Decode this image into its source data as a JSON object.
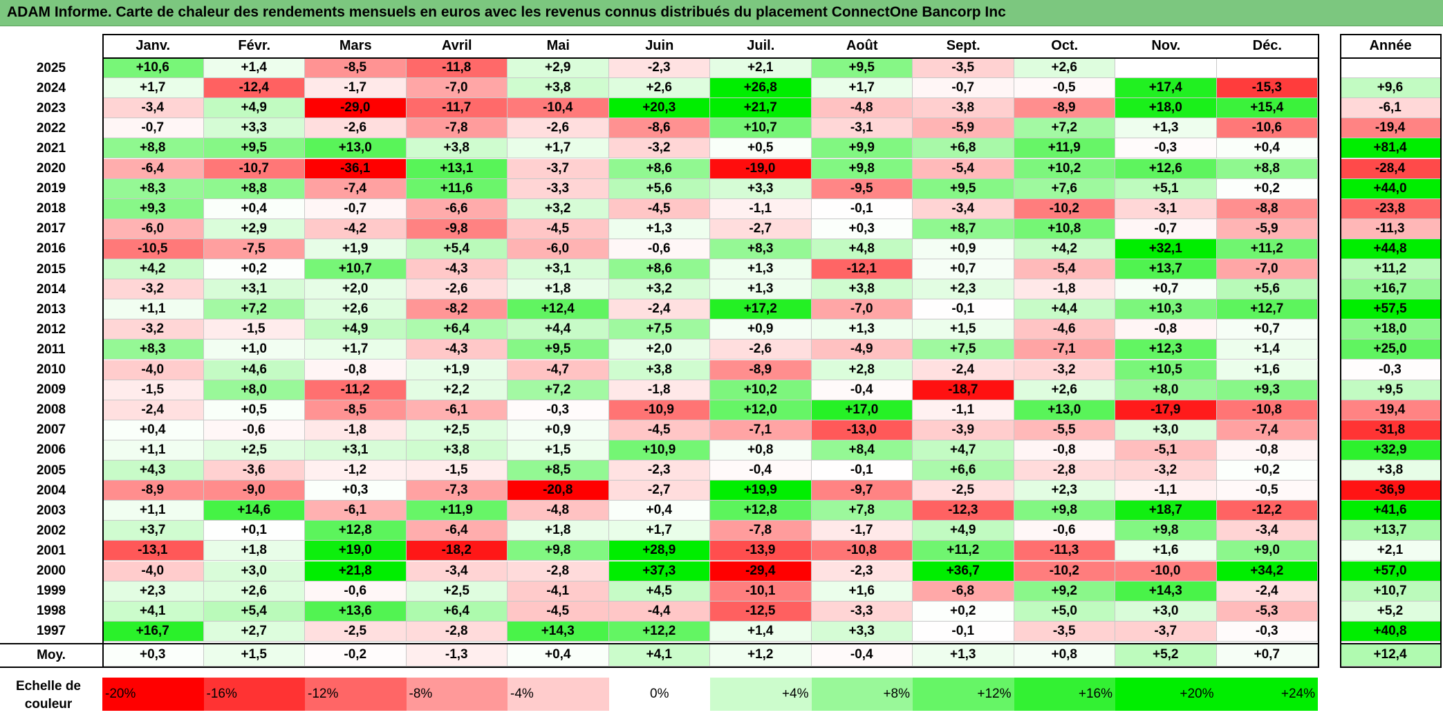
{
  "title": "ADAM Informe. Carte de chaleur des rendements mensuels en euros avec les revenus connus distribués du placement ConnectOne Bancorp Inc",
  "chart_data": {
    "type": "heatmap",
    "title": "ADAM Informe. Carte de chaleur des rendements mensuels en euros avec les revenus connus distribués du placement ConnectOne Bancorp Inc",
    "months": [
      "Janv.",
      "Févr.",
      "Mars",
      "Avril",
      "Mai",
      "Juin",
      "Juil.",
      "Août",
      "Sept.",
      "Oct.",
      "Nov.",
      "Déc."
    ],
    "annual_header": "Année",
    "rows": [
      {
        "year": "2025",
        "values": [
          "+10,6",
          "+1,4",
          "-8,5",
          "-11,8",
          "+2,9",
          "-2,3",
          "+2,1",
          "+9,5",
          "-3,5",
          "+2,6",
          "",
          ""
        ],
        "annual": ""
      },
      {
        "year": "2024",
        "values": [
          "+1,7",
          "-12,4",
          "-1,7",
          "-7,0",
          "+3,8",
          "+2,6",
          "+26,8",
          "+1,7",
          "-0,7",
          "-0,5",
          "+17,4",
          "-15,3"
        ],
        "annual": "+9,6"
      },
      {
        "year": "2023",
        "values": [
          "-3,4",
          "+4,9",
          "-29,0",
          "-11,7",
          "-10,4",
          "+20,3",
          "+21,7",
          "-4,8",
          "-3,8",
          "-8,9",
          "+18,0",
          "+15,4"
        ],
        "annual": "-6,1"
      },
      {
        "year": "2022",
        "values": [
          "-0,7",
          "+3,3",
          "-2,6",
          "-7,8",
          "-2,6",
          "-8,6",
          "+10,7",
          "-3,1",
          "-5,9",
          "+7,2",
          "+1,3",
          "-10,6"
        ],
        "annual": "-19,4"
      },
      {
        "year": "2021",
        "values": [
          "+8,8",
          "+9,5",
          "+13,0",
          "+3,8",
          "+1,7",
          "-3,2",
          "+0,5",
          "+9,9",
          "+6,8",
          "+11,9",
          "-0,3",
          "+0,4"
        ],
        "annual": "+81,4"
      },
      {
        "year": "2020",
        "values": [
          "-6,4",
          "-10,7",
          "-36,1",
          "+13,1",
          "-3,7",
          "+8,6",
          "-19,0",
          "+9,8",
          "-5,4",
          "+10,2",
          "+12,6",
          "+8,8"
        ],
        "annual": "-28,4"
      },
      {
        "year": "2019",
        "values": [
          "+8,3",
          "+8,8",
          "-7,4",
          "+11,6",
          "-3,3",
          "+5,6",
          "+3,3",
          "-9,5",
          "+9,5",
          "+7,6",
          "+5,1",
          "+0,2"
        ],
        "annual": "+44,0"
      },
      {
        "year": "2018",
        "values": [
          "+9,3",
          "+0,4",
          "-0,7",
          "-6,6",
          "+3,2",
          "-4,5",
          "-1,1",
          "-0,1",
          "-3,4",
          "-10,2",
          "-3,1",
          "-8,8"
        ],
        "annual": "-23,8"
      },
      {
        "year": "2017",
        "values": [
          "-6,0",
          "+2,9",
          "-4,2",
          "-9,8",
          "-4,5",
          "+1,3",
          "-2,7",
          "+0,3",
          "+8,7",
          "+10,8",
          "-0,7",
          "-5,9"
        ],
        "annual": "-11,3"
      },
      {
        "year": "2016",
        "values": [
          "-10,5",
          "-7,5",
          "+1,9",
          "+5,4",
          "-6,0",
          "-0,6",
          "+8,3",
          "+4,8",
          "+0,9",
          "+4,2",
          "+32,1",
          "+11,2"
        ],
        "annual": "+44,8"
      },
      {
        "year": "2015",
        "values": [
          "+4,2",
          "+0,2",
          "+10,7",
          "-4,3",
          "+3,1",
          "+8,6",
          "+1,3",
          "-12,1",
          "+0,7",
          "-5,4",
          "+13,7",
          "-7,0"
        ],
        "annual": "+11,2"
      },
      {
        "year": "2014",
        "values": [
          "-3,2",
          "+3,1",
          "+2,0",
          "-2,6",
          "+1,8",
          "+3,2",
          "+1,3",
          "+3,8",
          "+2,3",
          "-1,8",
          "+0,7",
          "+5,6"
        ],
        "annual": "+16,7"
      },
      {
        "year": "2013",
        "values": [
          "+1,1",
          "+7,2",
          "+2,6",
          "-8,2",
          "+12,4",
          "-2,4",
          "+17,2",
          "-7,0",
          "-0,1",
          "+4,4",
          "+10,3",
          "+12,7"
        ],
        "annual": "+57,5"
      },
      {
        "year": "2012",
        "values": [
          "-3,2",
          "-1,5",
          "+4,9",
          "+6,4",
          "+4,4",
          "+7,5",
          "+0,9",
          "+1,3",
          "+1,5",
          "-4,6",
          "-0,8",
          "+0,7"
        ],
        "annual": "+18,0"
      },
      {
        "year": "2011",
        "values": [
          "+8,3",
          "+1,0",
          "+1,7",
          "-4,3",
          "+9,5",
          "+2,0",
          "-2,6",
          "-4,9",
          "+7,5",
          "-7,1",
          "+12,3",
          "+1,4"
        ],
        "annual": "+25,0"
      },
      {
        "year": "2010",
        "values": [
          "-4,0",
          "+4,6",
          "-0,8",
          "+1,9",
          "-4,7",
          "+3,8",
          "-8,9",
          "+2,8",
          "-2,4",
          "-3,2",
          "+10,5",
          "+1,6"
        ],
        "annual": "-0,3"
      },
      {
        "year": "2009",
        "values": [
          "-1,5",
          "+8,0",
          "-11,2",
          "+2,2",
          "+7,2",
          "-1,8",
          "+10,2",
          "-0,4",
          "-18,7",
          "+2,6",
          "+8,0",
          "+9,3"
        ],
        "annual": "+9,5"
      },
      {
        "year": "2008",
        "values": [
          "-2,4",
          "+0,5",
          "-8,5",
          "-6,1",
          "-0,3",
          "-10,9",
          "+12,0",
          "+17,0",
          "-1,1",
          "+13,0",
          "-17,9",
          "-10,8"
        ],
        "annual": "-19,4"
      },
      {
        "year": "2007",
        "values": [
          "+0,4",
          "-0,6",
          "-1,8",
          "+2,5",
          "+0,9",
          "-4,5",
          "-7,1",
          "-13,0",
          "-3,9",
          "-5,5",
          "+3,0",
          "-7,4"
        ],
        "annual": "-31,8"
      },
      {
        "year": "2006",
        "values": [
          "+1,1",
          "+2,5",
          "+3,1",
          "+3,8",
          "+1,5",
          "+10,9",
          "+0,8",
          "+8,4",
          "+4,7",
          "-0,8",
          "-5,1",
          "-0,8"
        ],
        "annual": "+32,9"
      },
      {
        "year": "2005",
        "values": [
          "+4,3",
          "-3,6",
          "-1,2",
          "-1,5",
          "+8,5",
          "-2,3",
          "-0,4",
          "-0,1",
          "+6,6",
          "-2,8",
          "-3,2",
          "+0,2"
        ],
        "annual": "+3,8"
      },
      {
        "year": "2004",
        "values": [
          "-8,9",
          "-9,0",
          "+0,3",
          "-7,3",
          "-20,8",
          "-2,7",
          "+19,9",
          "-9,7",
          "-2,5",
          "+2,3",
          "-1,1",
          "-0,5"
        ],
        "annual": "-36,9"
      },
      {
        "year": "2003",
        "values": [
          "+1,1",
          "+14,6",
          "-6,1",
          "+11,9",
          "-4,8",
          "+0,4",
          "+12,8",
          "+7,8",
          "-12,3",
          "+9,8",
          "+18,7",
          "-12,2"
        ],
        "annual": "+41,6"
      },
      {
        "year": "2002",
        "values": [
          "+3,7",
          "+0,1",
          "+12,8",
          "-6,4",
          "+1,8",
          "+1,7",
          "-7,8",
          "-1,7",
          "+4,9",
          "-0,6",
          "+9,8",
          "-3,4"
        ],
        "annual": "+13,7"
      },
      {
        "year": "2001",
        "values": [
          "-13,1",
          "+1,8",
          "+19,0",
          "-18,2",
          "+9,8",
          "+28,9",
          "-13,9",
          "-10,8",
          "+11,2",
          "-11,3",
          "+1,6",
          "+9,0"
        ],
        "annual": "+2,1"
      },
      {
        "year": "2000",
        "values": [
          "-4,0",
          "+3,0",
          "+21,8",
          "-3,4",
          "-2,8",
          "+37,3",
          "-29,4",
          "-2,3",
          "+36,7",
          "-10,2",
          "-10,0",
          "+34,2"
        ],
        "annual": "+57,0"
      },
      {
        "year": "1999",
        "values": [
          "+2,3",
          "+2,6",
          "-0,6",
          "+2,5",
          "-4,1",
          "+4,5",
          "-10,1",
          "+1,6",
          "-6,8",
          "+9,2",
          "+14,3",
          "-2,4"
        ],
        "annual": "+10,7"
      },
      {
        "year": "1998",
        "values": [
          "+4,1",
          "+5,4",
          "+13,6",
          "+6,4",
          "-4,5",
          "-4,4",
          "-12,5",
          "-3,3",
          "+0,2",
          "+5,0",
          "+3,0",
          "-5,3"
        ],
        "annual": "+5,2"
      },
      {
        "year": "1997",
        "values": [
          "+16,7",
          "+2,7",
          "-2,5",
          "-2,8",
          "+14,3",
          "+12,2",
          "+1,4",
          "+3,3",
          "-0,1",
          "-3,5",
          "-3,7",
          "-0,3"
        ],
        "annual": "+40,8"
      }
    ],
    "average": {
      "label": "Moy.",
      "values": [
        "+0,3",
        "+1,5",
        "-0,2",
        "-1,3",
        "+0,4",
        "+4,1",
        "+1,2",
        "-0,4",
        "+1,3",
        "+0,8",
        "+5,2",
        "+0,7"
      ],
      "annual": "+12,4"
    },
    "scale": {
      "label_line1": "Echelle de",
      "label_line2": "couleur",
      "steps": [
        {
          "label": "-20%",
          "value": -20
        },
        {
          "label": "-16%",
          "value": -16
        },
        {
          "label": "-12%",
          "value": -12
        },
        {
          "label": "-8%",
          "value": -8
        },
        {
          "label": "-4%",
          "value": -4
        },
        {
          "label": "0%",
          "value": 0
        },
        {
          "label": "+4%",
          "value": 4
        },
        {
          "label": "+8%",
          "value": 8
        },
        {
          "label": "+12%",
          "value": 12
        },
        {
          "label": "+16%",
          "value": 16
        },
        {
          "label": "+20%",
          "value": 20
        },
        {
          "label": "+24%",
          "value": 24
        }
      ]
    },
    "colors": {
      "negative_max": "#ff0000",
      "neutral": "#ffffff",
      "positive_max": "#00ee00"
    }
  }
}
